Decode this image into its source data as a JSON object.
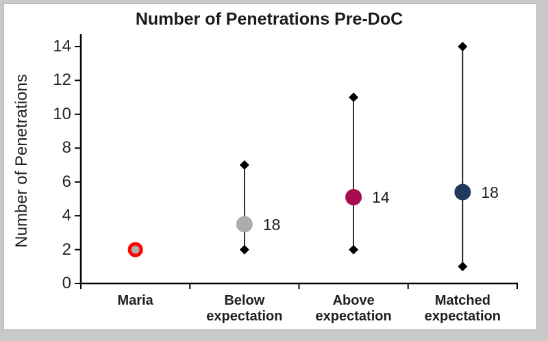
{
  "chart_data": {
    "type": "scatter",
    "title": "Number of Penetrations Pre-DoC",
    "ylabel": "Number of Penetrations",
    "xlabel": "",
    "ylim": [
      0,
      14
    ],
    "yticks": [
      0,
      2,
      4,
      6,
      8,
      10,
      12,
      14
    ],
    "grid": false,
    "legend": false,
    "categories": [
      "Maria",
      "Below\nexpectation",
      "Above\nexpectation",
      "Matched\nexpectation"
    ],
    "points": [
      {
        "category": "Maria",
        "mean": 2,
        "min": null,
        "max": null,
        "n_label": "",
        "fill": "#ACACAC",
        "ring": "#FF0000"
      },
      {
        "category": "Below expectation",
        "mean": 3.5,
        "min": 2,
        "max": 7,
        "n_label": "18",
        "fill": "#ACACAC",
        "ring": null
      },
      {
        "category": "Above expectation",
        "mean": 5.1,
        "min": 2,
        "max": 11,
        "n_label": "14",
        "fill": "#A50D4E",
        "ring": null
      },
      {
        "category": "Matched expectation",
        "mean": 5.4,
        "min": 1,
        "max": 14,
        "n_label": "18",
        "fill": "#1F395C",
        "ring": null
      }
    ],
    "whisker_marker": "diamond",
    "whisker_color": "#000000",
    "axis_color": "#000000",
    "text_color": "#1F1F1F",
    "frame": {
      "background": "#FFFFFF",
      "border": "#B5B5B5",
      "outer_background": "#C9C9C9"
    }
  }
}
